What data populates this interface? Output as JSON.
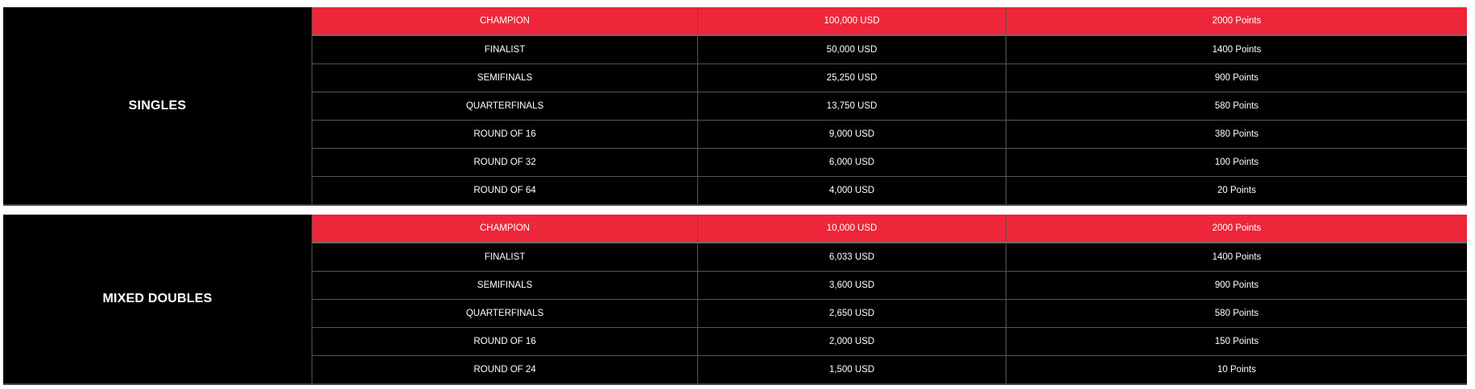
{
  "accent_color": "#ee2639",
  "tables": [
    {
      "category": "SINGLES",
      "rows": [
        {
          "round": "CHAMPION",
          "prize": "100,000 USD",
          "points": "2000 Points"
        },
        {
          "round": "FINALIST",
          "prize": "50,000 USD",
          "points": "1400 Points"
        },
        {
          "round": "SEMIFINALS",
          "prize": "25,250 USD",
          "points": "900 Points"
        },
        {
          "round": "QUARTERFINALS",
          "prize": "13,750 USD",
          "points": "580 Points"
        },
        {
          "round": "ROUND OF 16",
          "prize": "9,000 USD",
          "points": "380 Points"
        },
        {
          "round": "ROUND OF 32",
          "prize": "6,000 USD",
          "points": "100 Points"
        },
        {
          "round": "ROUND OF 64",
          "prize": "4,000 USD",
          "points": "20 Points"
        }
      ]
    },
    {
      "category": "MIXED DOUBLES",
      "rows": [
        {
          "round": "CHAMPION",
          "prize": "10,000 USD",
          "points": "2000 Points"
        },
        {
          "round": "FINALIST",
          "prize": "6,033 USD",
          "points": "1400 Points"
        },
        {
          "round": "SEMIFINALS",
          "prize": "3,600 USD",
          "points": "900 Points"
        },
        {
          "round": "QUARTERFINALS",
          "prize": "2,650 USD",
          "points": "580 Points"
        },
        {
          "round": "ROUND OF 16",
          "prize": "2,000 USD",
          "points": "150 Points"
        },
        {
          "round": "ROUND OF 24",
          "prize": "1,500 USD",
          "points": "10 Points"
        }
      ]
    }
  ]
}
